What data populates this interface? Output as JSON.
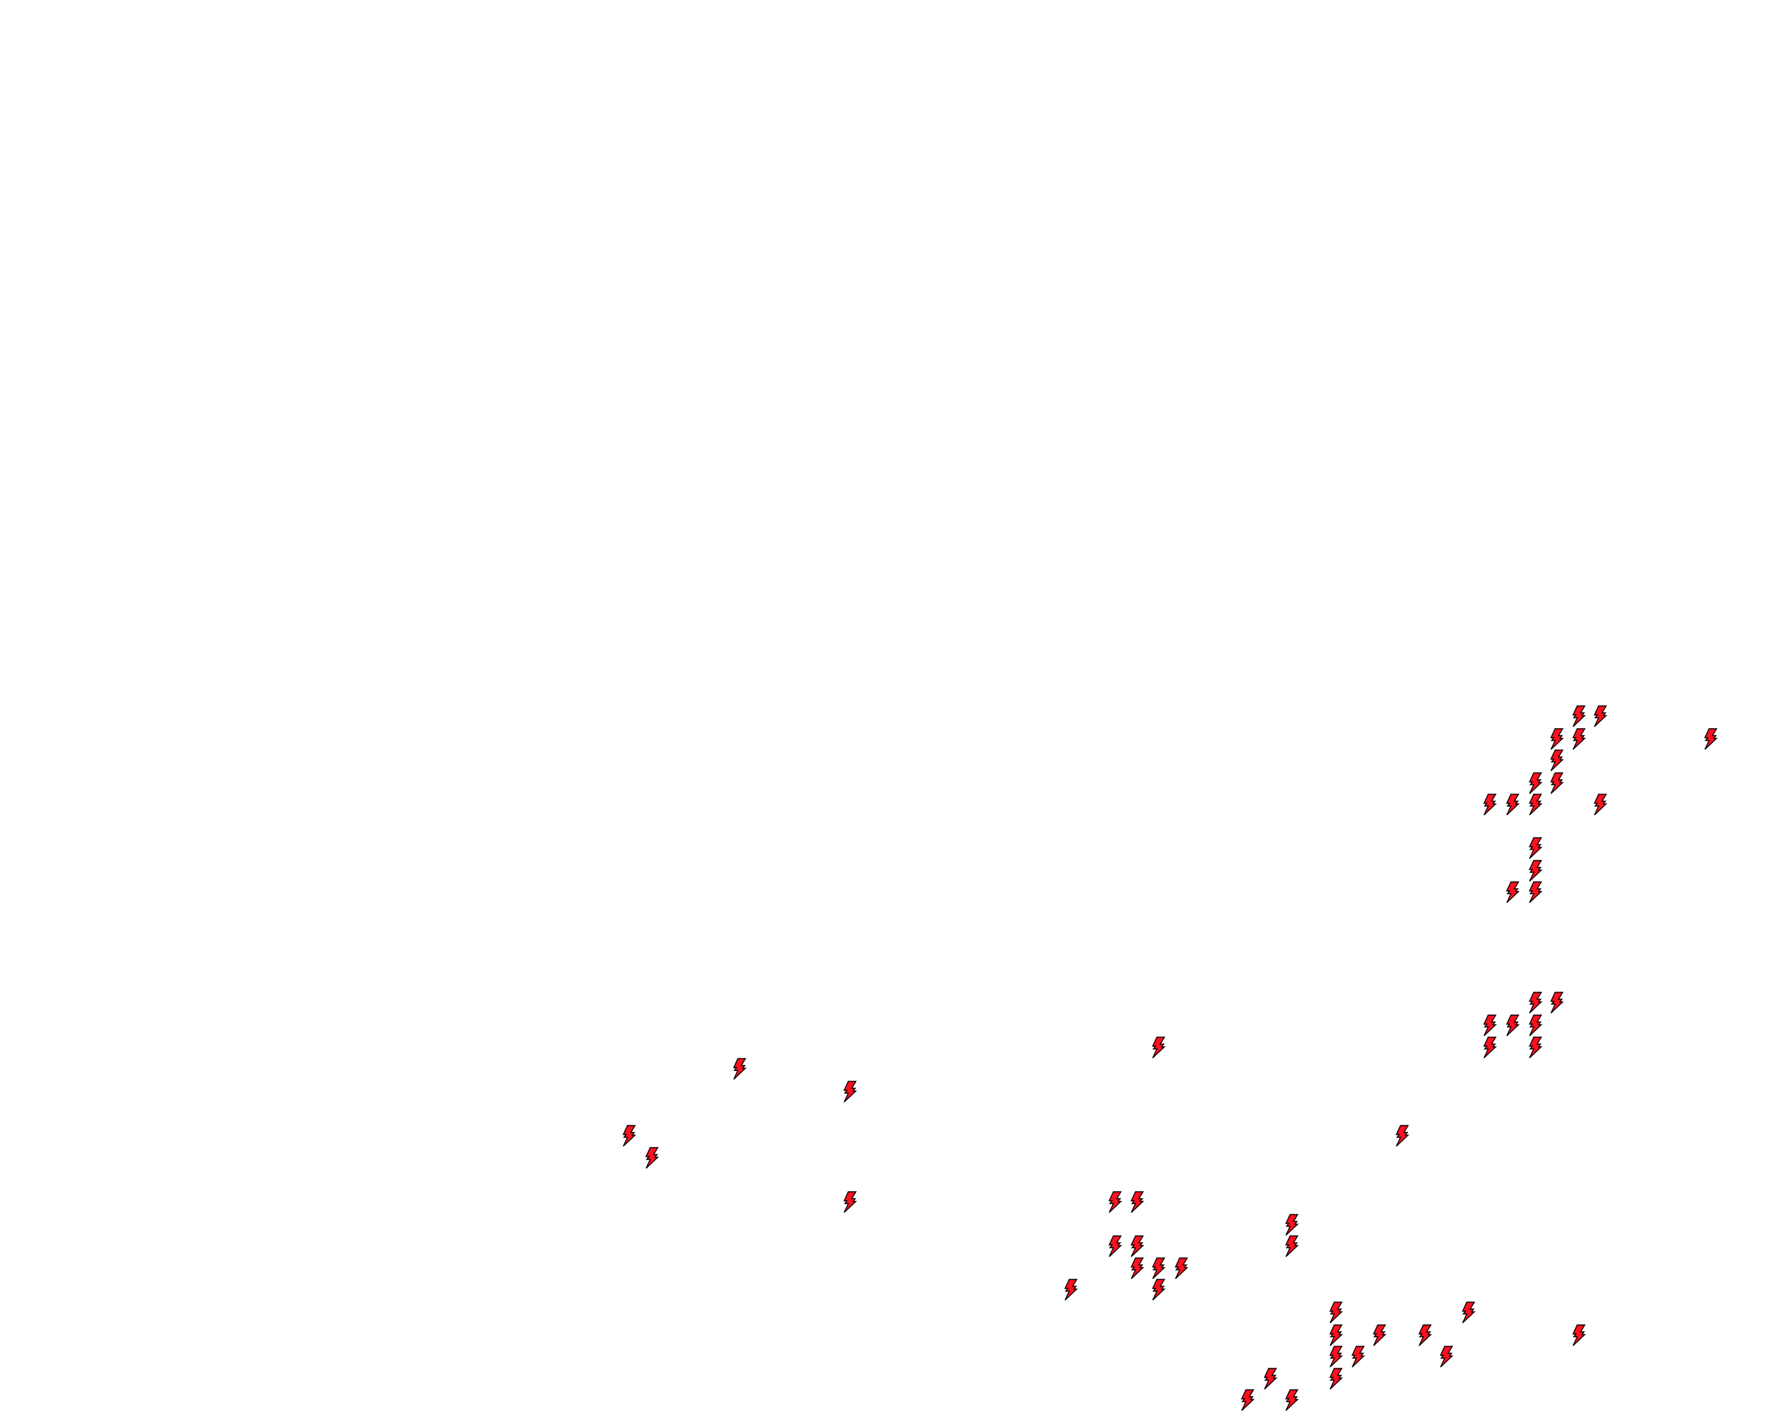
{
  "map": {
    "background": "#ffffff",
    "marker": {
      "icon": "lightning-bolt-icon",
      "fill": "#ff1020",
      "outline": "#000000"
    }
  }
}
